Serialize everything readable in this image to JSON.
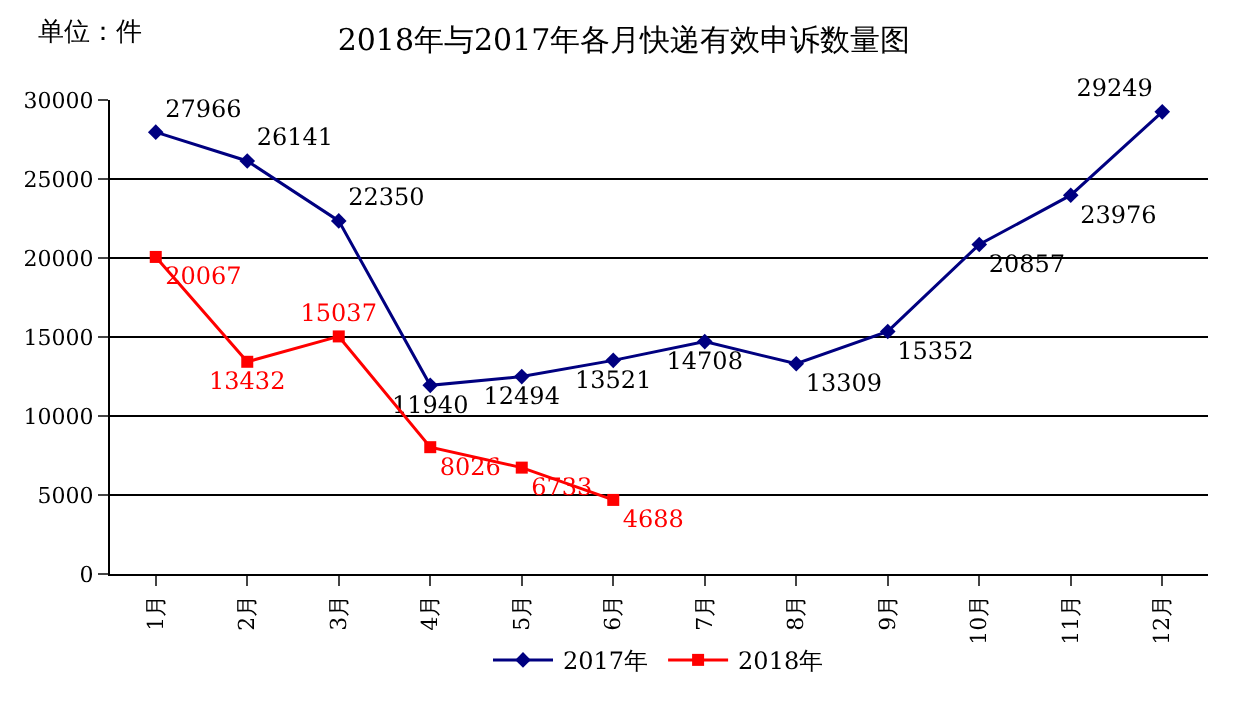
{
  "chart_data": {
    "type": "line",
    "title": "2018年与2017年各月快递有效申诉数量图",
    "ylabel": "单位：件",
    "categories": [
      "1月",
      "2月",
      "3月",
      "4月",
      "5月",
      "6月",
      "7月",
      "8月",
      "9月",
      "10月",
      "11月",
      "12月"
    ],
    "series": [
      {
        "name": "2017年",
        "color": "#000080",
        "marker": "diamond",
        "values": [
          27966,
          26141,
          22350,
          11940,
          12494,
          13521,
          14708,
          13309,
          15352,
          20857,
          23976,
          29249
        ]
      },
      {
        "name": "2018年",
        "color": "#ff0000",
        "marker": "square",
        "values": [
          20067,
          13432,
          15037,
          8026,
          6733,
          4688,
          null,
          null,
          null,
          null,
          null,
          null
        ]
      }
    ],
    "ylim": [
      0,
      30000
    ],
    "yticks": [
      0,
      5000,
      10000,
      15000,
      20000,
      25000,
      30000
    ],
    "grid": "y",
    "legend": "bottom",
    "data_labels": true
  }
}
